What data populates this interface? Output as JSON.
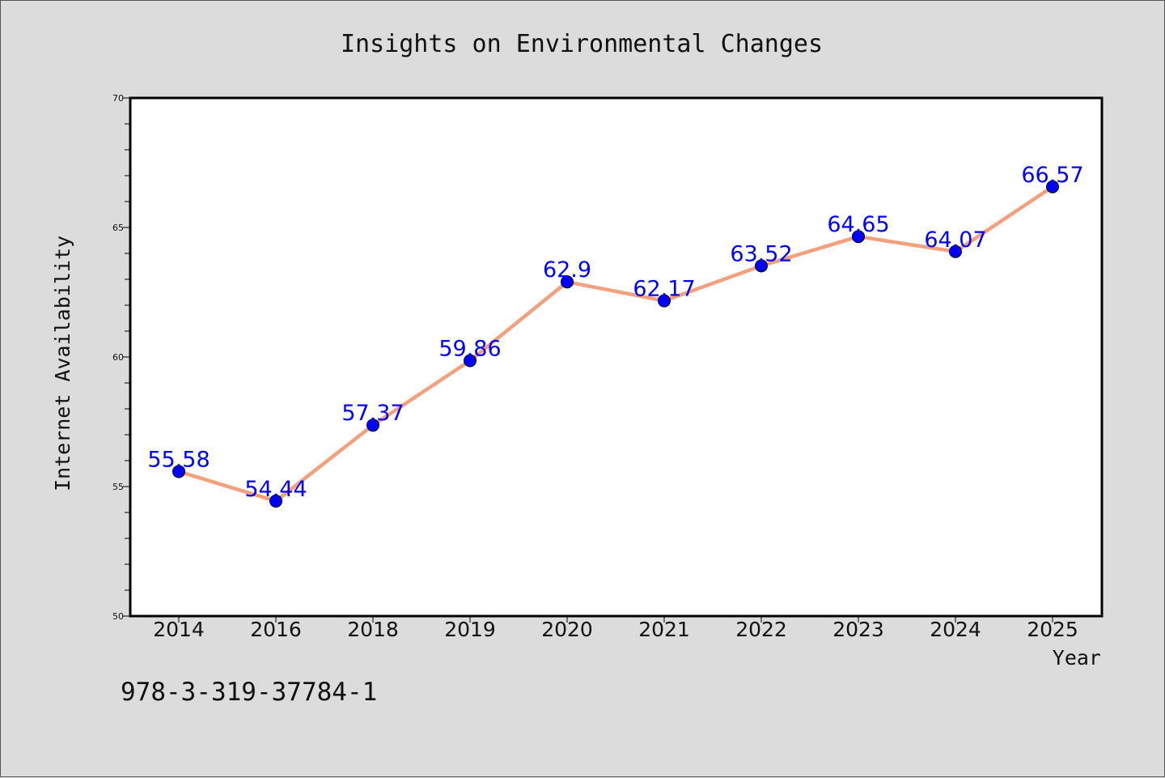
{
  "chart_data": {
    "type": "line",
    "title": "Insights on Environmental Changes",
    "xlabel": "Year",
    "ylabel": "Internet Availability",
    "categories": [
      "2014",
      "2016",
      "2018",
      "2019",
      "2020",
      "2021",
      "2022",
      "2023",
      "2024",
      "2025"
    ],
    "series": [
      {
        "values": [
          55.58,
          54.44,
          57.37,
          59.86,
          62.9,
          62.17,
          63.52,
          64.65,
          64.07,
          66.57
        ],
        "line_color": "#f4a07c",
        "marker_color": "#0000ff"
      }
    ],
    "data_labels": [
      "55.58",
      "54.44",
      "57.37",
      "59.86",
      "62.9",
      "62.17",
      "63.52",
      "64.65",
      "64.07",
      "66.57"
    ],
    "data_label_color": "#0000ff",
    "ylim": [
      50,
      70
    ],
    "yticks": [
      50,
      55,
      60,
      65,
      70
    ],
    "grid": false,
    "legend": false
  },
  "footer": {
    "isbn": "978-3-319-37784-1"
  }
}
